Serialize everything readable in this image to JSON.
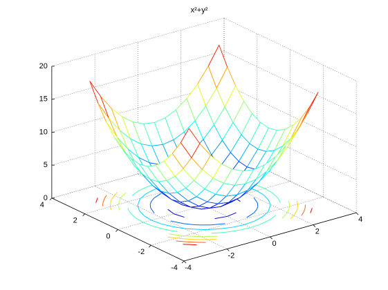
{
  "chart_data": {
    "type": "meshc",
    "title": "x²+y²",
    "x": [
      -3,
      -2.5,
      -2,
      -1.5,
      -1,
      -0.5,
      0,
      0.5,
      1,
      1.5,
      2,
      2.5,
      3
    ],
    "y": [
      -3,
      -2.5,
      -2,
      -1.5,
      -1,
      -0.5,
      0,
      0.5,
      1,
      1.5,
      2,
      2.5,
      3
    ],
    "z": [
      [
        18,
        15.25,
        13,
        11.25,
        10,
        9.25,
        9,
        9.25,
        10,
        11.25,
        13,
        15.25,
        18
      ],
      [
        15.25,
        12.5,
        10.25,
        8.5,
        7.25,
        6.5,
        6.25,
        6.5,
        7.25,
        8.5,
        10.25,
        12.5,
        15.25
      ],
      [
        13,
        10.25,
        8,
        6.25,
        5,
        4.25,
        4,
        4.25,
        5,
        6.25,
        8,
        10.25,
        13
      ],
      [
        11.25,
        8.5,
        6.25,
        4.5,
        3.25,
        2.5,
        2.25,
        2.5,
        3.25,
        4.5,
        6.25,
        8.5,
        11.25
      ],
      [
        10,
        7.25,
        5,
        3.25,
        2,
        1.25,
        1,
        1.25,
        2,
        3.25,
        5,
        7.25,
        10
      ],
      [
        9.25,
        6.5,
        4.25,
        2.5,
        1.25,
        0.5,
        0.25,
        0.5,
        1.25,
        2.5,
        4.25,
        6.5,
        9.25
      ],
      [
        9,
        6.25,
        4,
        2.25,
        1,
        0.25,
        0,
        0.25,
        1,
        2.25,
        4,
        6.25,
        9
      ],
      [
        9.25,
        6.5,
        4.25,
        2.5,
        1.25,
        0.5,
        0.25,
        0.5,
        1.25,
        2.5,
        4.25,
        6.5,
        9.25
      ],
      [
        10,
        7.25,
        5,
        3.25,
        2,
        1.25,
        1,
        1.25,
        2,
        3.25,
        5,
        7.25,
        10
      ],
      [
        11.25,
        8.5,
        6.25,
        4.5,
        3.25,
        2.5,
        2.25,
        2.5,
        3.25,
        4.5,
        6.25,
        8.5,
        11.25
      ],
      [
        13,
        10.25,
        8,
        6.25,
        5,
        4.25,
        4,
        4.25,
        5,
        6.25,
        8,
        10.25,
        13
      ],
      [
        15.25,
        12.5,
        10.25,
        8.5,
        7.25,
        6.5,
        6.25,
        6.5,
        7.25,
        8.5,
        10.25,
        12.5,
        15.25
      ],
      [
        18,
        15.25,
        13,
        11.25,
        10,
        9.25,
        9,
        9.25,
        10,
        11.25,
        13,
        15.25,
        18
      ]
    ],
    "contour_levels": [
      2,
      4,
      6,
      8,
      10,
      12,
      14,
      16
    ],
    "colormap": "jet",
    "view": [
      -37.5,
      30
    ],
    "xlim": [
      -4,
      4
    ],
    "xticks": [
      -4,
      -2,
      0,
      2,
      4
    ],
    "ylim": [
      -4,
      4
    ],
    "yticks": [
      -4,
      -2,
      0,
      2,
      4
    ],
    "zlim": [
      0,
      20
    ],
    "zticks": [
      0,
      5,
      10,
      15,
      20
    ],
    "grid": true
  }
}
